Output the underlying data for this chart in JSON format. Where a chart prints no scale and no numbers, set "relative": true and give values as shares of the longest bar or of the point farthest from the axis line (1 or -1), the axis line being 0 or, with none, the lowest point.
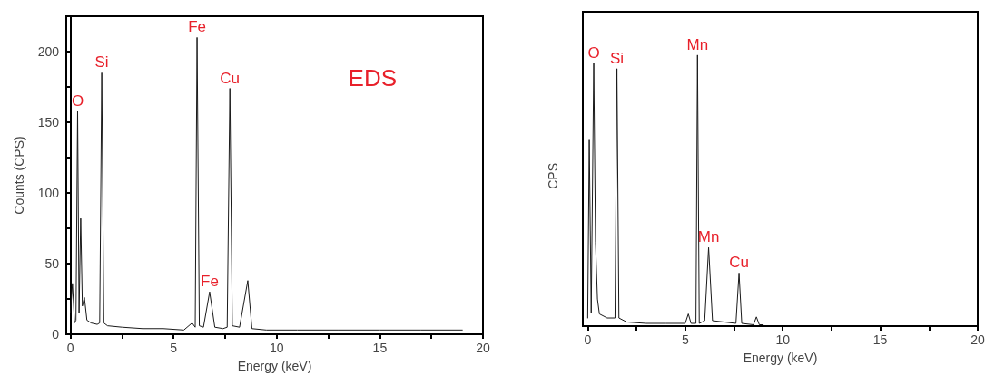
{
  "chart_data": [
    {
      "type": "line",
      "xlabel": "Energy (keV)",
      "ylabel": "Counts (CPS)",
      "marker": "none",
      "line_style": "solid",
      "xlim": [
        -0.2,
        20
      ],
      "xticks": [
        0,
        {
          "value": 2.5,
          "label": null
        },
        5,
        {
          "value": 7.5,
          "label": null
        },
        10,
        {
          "value": 12.5,
          "label": null
        },
        15,
        {
          "value": 17.5,
          "label": null
        },
        20
      ],
      "ylim": [
        0,
        225
      ],
      "yticks": [
        0,
        {
          "value": 25,
          "label": null
        },
        50,
        {
          "value": 75,
          "label": null
        },
        100,
        {
          "value": 125,
          "label": null
        },
        150,
        {
          "value": 175,
          "label": null
        },
        200
      ],
      "series": [
        {
          "color": "#1a1a1a",
          "x": [
            0,
            0.1,
            0.2,
            0.27,
            0.35,
            0.42,
            0.5,
            0.58,
            0.68,
            0.8,
            1.0,
            1.3,
            1.42,
            1.52,
            1.62,
            1.8,
            2.5,
            3.5,
            4.5,
            5.5,
            5.9,
            6.05,
            6.14,
            6.25,
            6.45,
            6.75,
            7.0,
            7.4,
            7.6,
            7.73,
            7.85,
            8.2,
            8.6,
            8.8,
            9.5,
            11,
            13,
            15,
            17,
            19
          ],
          "values": [
            15,
            36,
            8,
            10,
            158,
            15,
            82,
            20,
            26,
            10,
            8,
            7,
            8,
            185,
            8,
            6,
            5,
            4,
            4,
            3,
            8,
            5,
            210,
            6,
            5,
            30,
            5,
            4,
            5,
            174,
            6,
            5,
            38,
            4,
            3,
            3,
            3,
            3,
            3,
            3
          ]
        }
      ],
      "annotations": [
        "EDS",
        {
          "text": "O",
          "x": 0.35,
          "y": 158
        },
        {
          "text": "Si",
          "x": 1.52,
          "y": 185
        },
        {
          "text": "Fe",
          "x": 6.14,
          "y": 210
        },
        {
          "text": "Fe",
          "x": 6.75,
          "y": 30
        },
        {
          "text": "Cu",
          "x": 7.73,
          "y": 174
        }
      ]
    },
    {
      "type": "line",
      "xlabel": "Energy (keV)",
      "ylabel": "CPS",
      "marker": "none",
      "line_style": "solid",
      "relative": true,
      "xlim": [
        -0.25,
        20
      ],
      "xticks": [
        0,
        {
          "value": 2.5,
          "label": null
        },
        5,
        {
          "value": 7.5,
          "label": null
        },
        10,
        {
          "value": 12.5,
          "label": null
        },
        15,
        {
          "value": 17.5,
          "label": null
        },
        20
      ],
      "series": [
        {
          "color": "#1a1a1a",
          "x": [
            0,
            0.08,
            0.18,
            0.31,
            0.4,
            0.5,
            0.6,
            1.0,
            1.4,
            1.5,
            1.6,
            2,
            3,
            4,
            5,
            5.16,
            5.3,
            5.55,
            5.63,
            5.72,
            6.0,
            6.2,
            6.4,
            7,
            7.6,
            7.76,
            7.9,
            8.5,
            8.65,
            8.8,
            9
          ],
          "values": [
            0.03,
            0.69,
            0.05,
            0.97,
            0.31,
            0.1,
            0.045,
            0.03,
            0.03,
            0.95,
            0.03,
            0.015,
            0.01,
            0.01,
            0.01,
            0.045,
            0.01,
            0.01,
            1,
            0.01,
            0.02,
            0.29,
            0.02,
            0.015,
            0.01,
            0.196,
            0.01,
            0.005,
            0.034,
            0.005,
            0.005
          ]
        }
      ],
      "annotations": [
        {
          "text": "O",
          "x": 0.31,
          "y": 0.97
        },
        {
          "text": "Si",
          "x": 1.5,
          "y": 0.95
        },
        {
          "text": "Mn",
          "x": 5.63,
          "y": 1
        },
        {
          "text": "Mn",
          "x": 6.2,
          "y": 0.29
        },
        {
          "text": "Cu",
          "x": 7.76,
          "y": 0.196
        }
      ]
    }
  ]
}
